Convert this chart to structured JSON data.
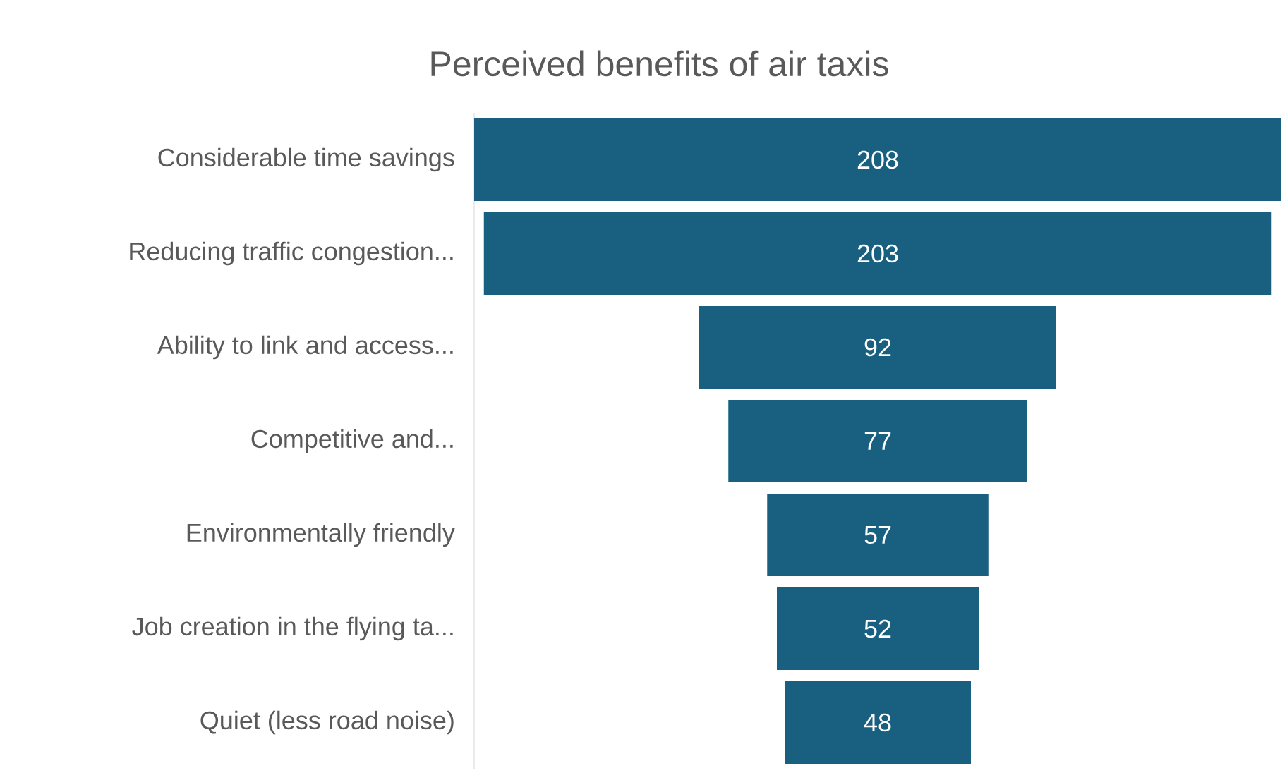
{
  "chart_data": {
    "type": "other",
    "title": "Perceived benefits of air taxis",
    "categories": [
      "Considerable time savings",
      "Reducing traffic congestion...",
      "Ability to link and access...",
      "Competitive and...",
      "Environmentally friendly",
      "Job creation in the flying ta...",
      "Quiet (less road noise)"
    ],
    "values": [
      208,
      203,
      92,
      77,
      57,
      52,
      48
    ],
    "color": "#185f80",
    "data_labels": true
  }
}
